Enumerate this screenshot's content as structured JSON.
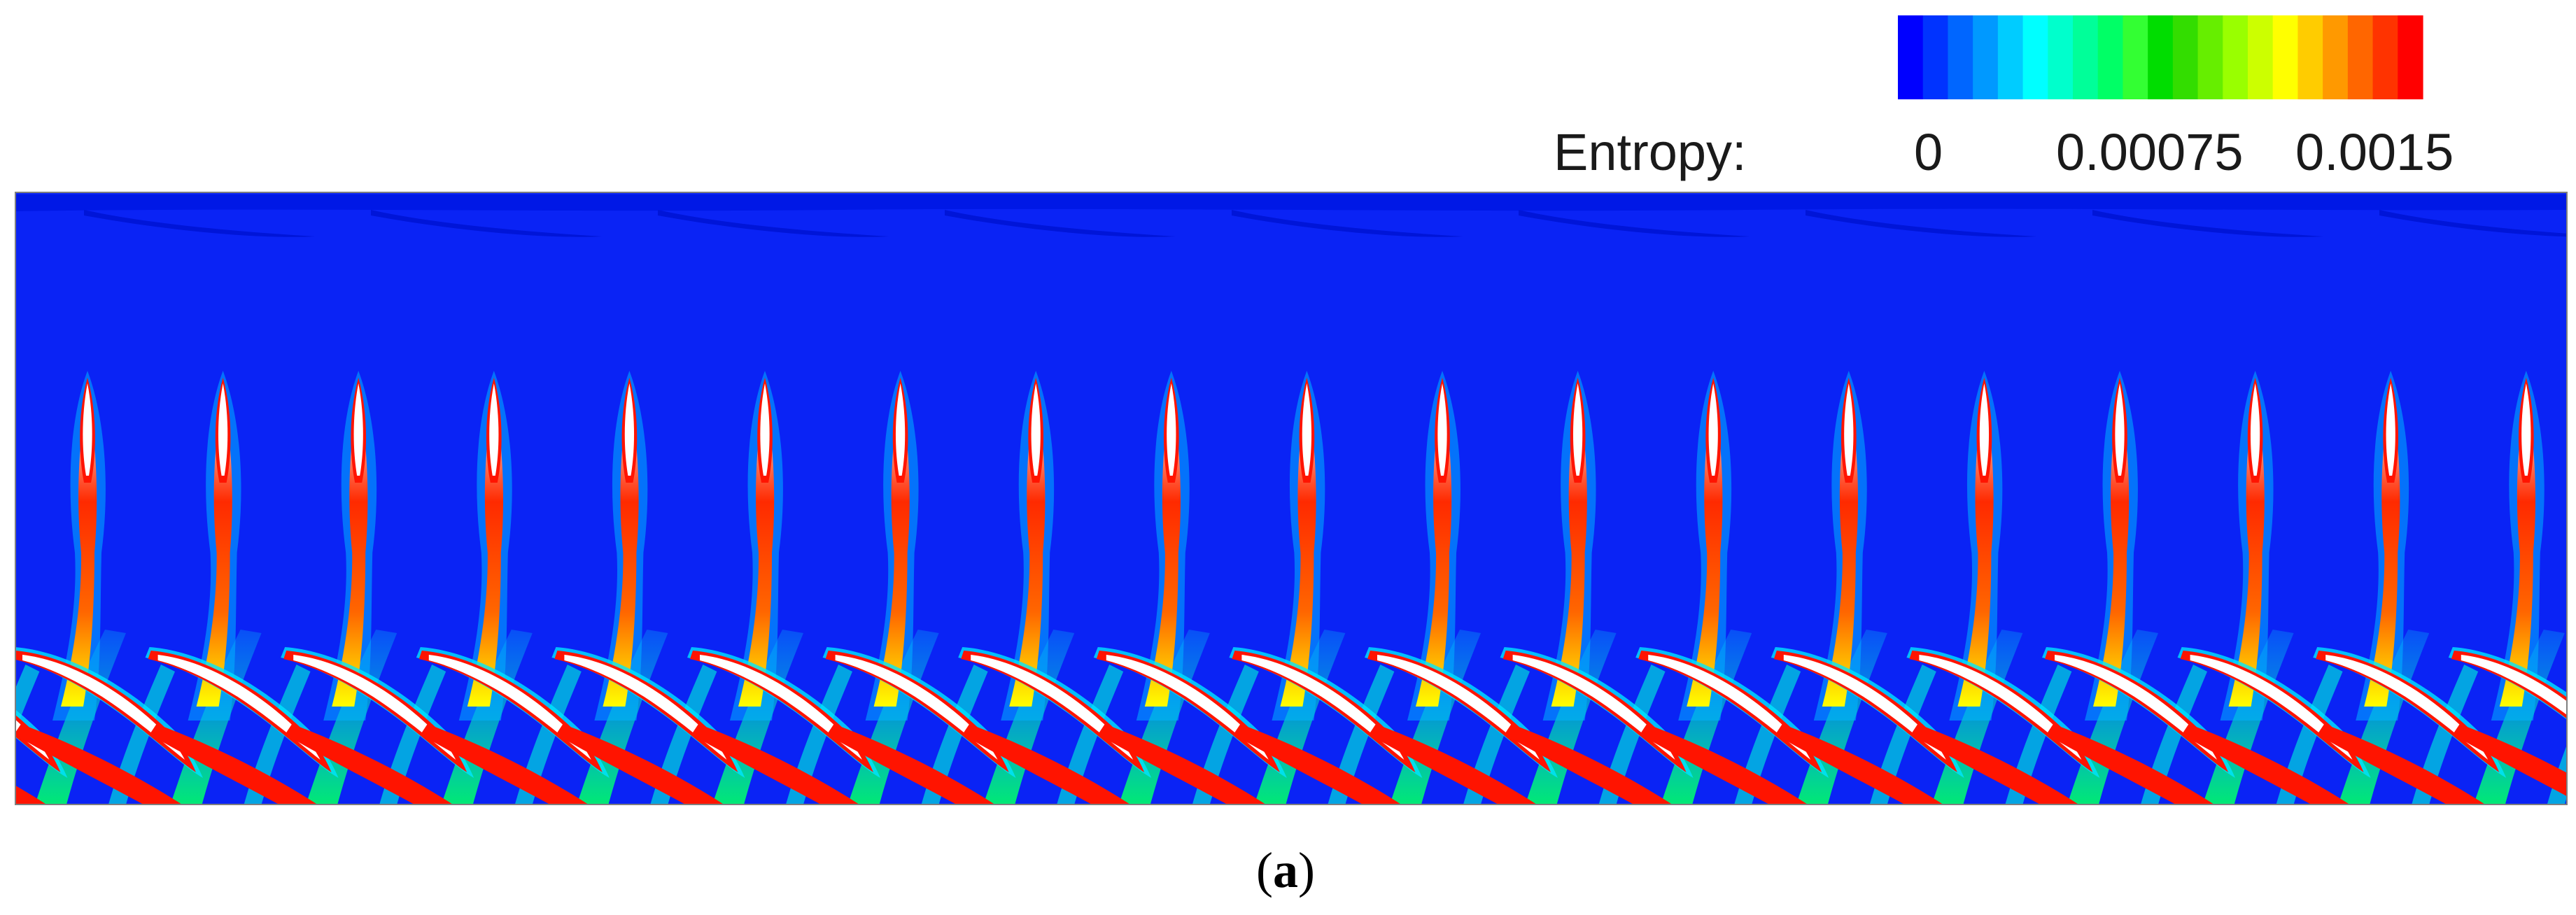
{
  "legend": {
    "title": "Entropy:",
    "ticks": [
      "0",
      "0.00075",
      "0.0015"
    ],
    "range": [
      0,
      0.0015
    ],
    "colors": [
      "#0000ff",
      "#0033ff",
      "#0066ff",
      "#0099ff",
      "#00ccff",
      "#00ffff",
      "#00ffcc",
      "#00ff99",
      "#00ff66",
      "#33ff33",
      "#00dd00",
      "#33dd00",
      "#66ee00",
      "#99ff00",
      "#ccff00",
      "#ffff00",
      "#ffcc00",
      "#ff9900",
      "#ff6600",
      "#ff3300",
      "#ff0000"
    ]
  },
  "field": {
    "background_color": "#0a23f5",
    "wake_color": "#ff1400",
    "core_color": "#ffffff",
    "row1_blade_count": 19,
    "row2_blade_count": 19
  },
  "caption": {
    "open": "(",
    "letter": "a",
    "close": ")"
  }
}
